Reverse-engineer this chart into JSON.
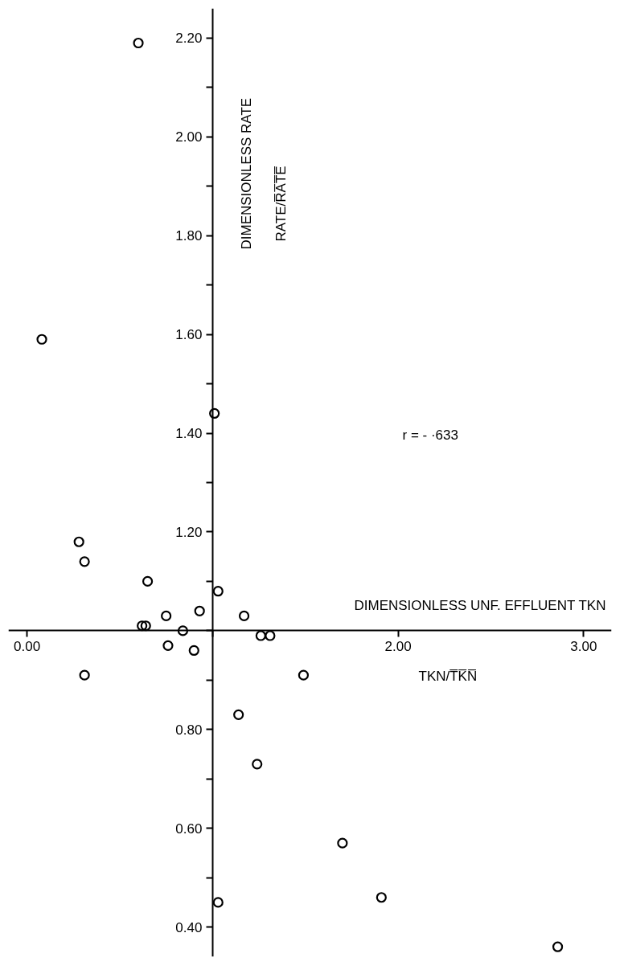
{
  "chart_data": {
    "type": "scatter",
    "xlabel": "DIMENSIONLESS UNF. EFFLUENT TKN",
    "ylabel": "DIMENSIONLESS RATE",
    "annotations": [
      "RATE/R̅A̅T̅E̅",
      "TKN/T̅K̅N̅",
      "r = - ·633"
    ],
    "x": [
      0.6,
      0.08,
      1.01,
      0.28,
      0.31,
      0.65,
      1.03,
      0.75,
      0.93,
      0.62,
      0.64,
      1.17,
      0.84,
      1.26,
      1.31,
      0.76,
      0.9,
      0.31,
      1.49,
      1.14,
      1.24,
      1.7,
      1.91,
      1.03,
      2.86
    ],
    "series": [
      {
        "color": "#000000",
        "values": [
          2.19,
          1.59,
          1.44,
          1.18,
          1.14,
          1.1,
          1.08,
          1.03,
          1.04,
          1.01,
          1.01,
          1.03,
          1.0,
          0.99,
          0.99,
          0.97,
          0.96,
          0.91,
          0.91,
          0.83,
          0.73,
          0.57,
          0.46,
          0.45,
          0.36
        ]
      }
    ],
    "marker": "circle",
    "xlim": [
      -0.1,
      3.15
    ],
    "ylim": [
      0.34,
      2.26
    ],
    "xticks": [
      {
        "value": 0,
        "label": "0.00"
      },
      {
        "value": 2,
        "label": "2.00"
      },
      {
        "value": 3,
        "label": "3.00"
      }
    ],
    "yticks": [
      {
        "value": 0.4,
        "label": "0.40"
      },
      {
        "value": 0.6,
        "label": "0.60"
      },
      {
        "value": 0.8,
        "label": "0.80"
      },
      {
        "value": 1.2,
        "label": "1.20"
      },
      {
        "value": 1.4,
        "label": "1.40"
      },
      {
        "value": 1.6,
        "label": "1.60"
      },
      {
        "value": 1.8,
        "label": "1.80"
      },
      {
        "value": 2.0,
        "label": "2.00"
      },
      {
        "value": 2.2,
        "label": "2.20"
      }
    ],
    "grid": false
  }
}
